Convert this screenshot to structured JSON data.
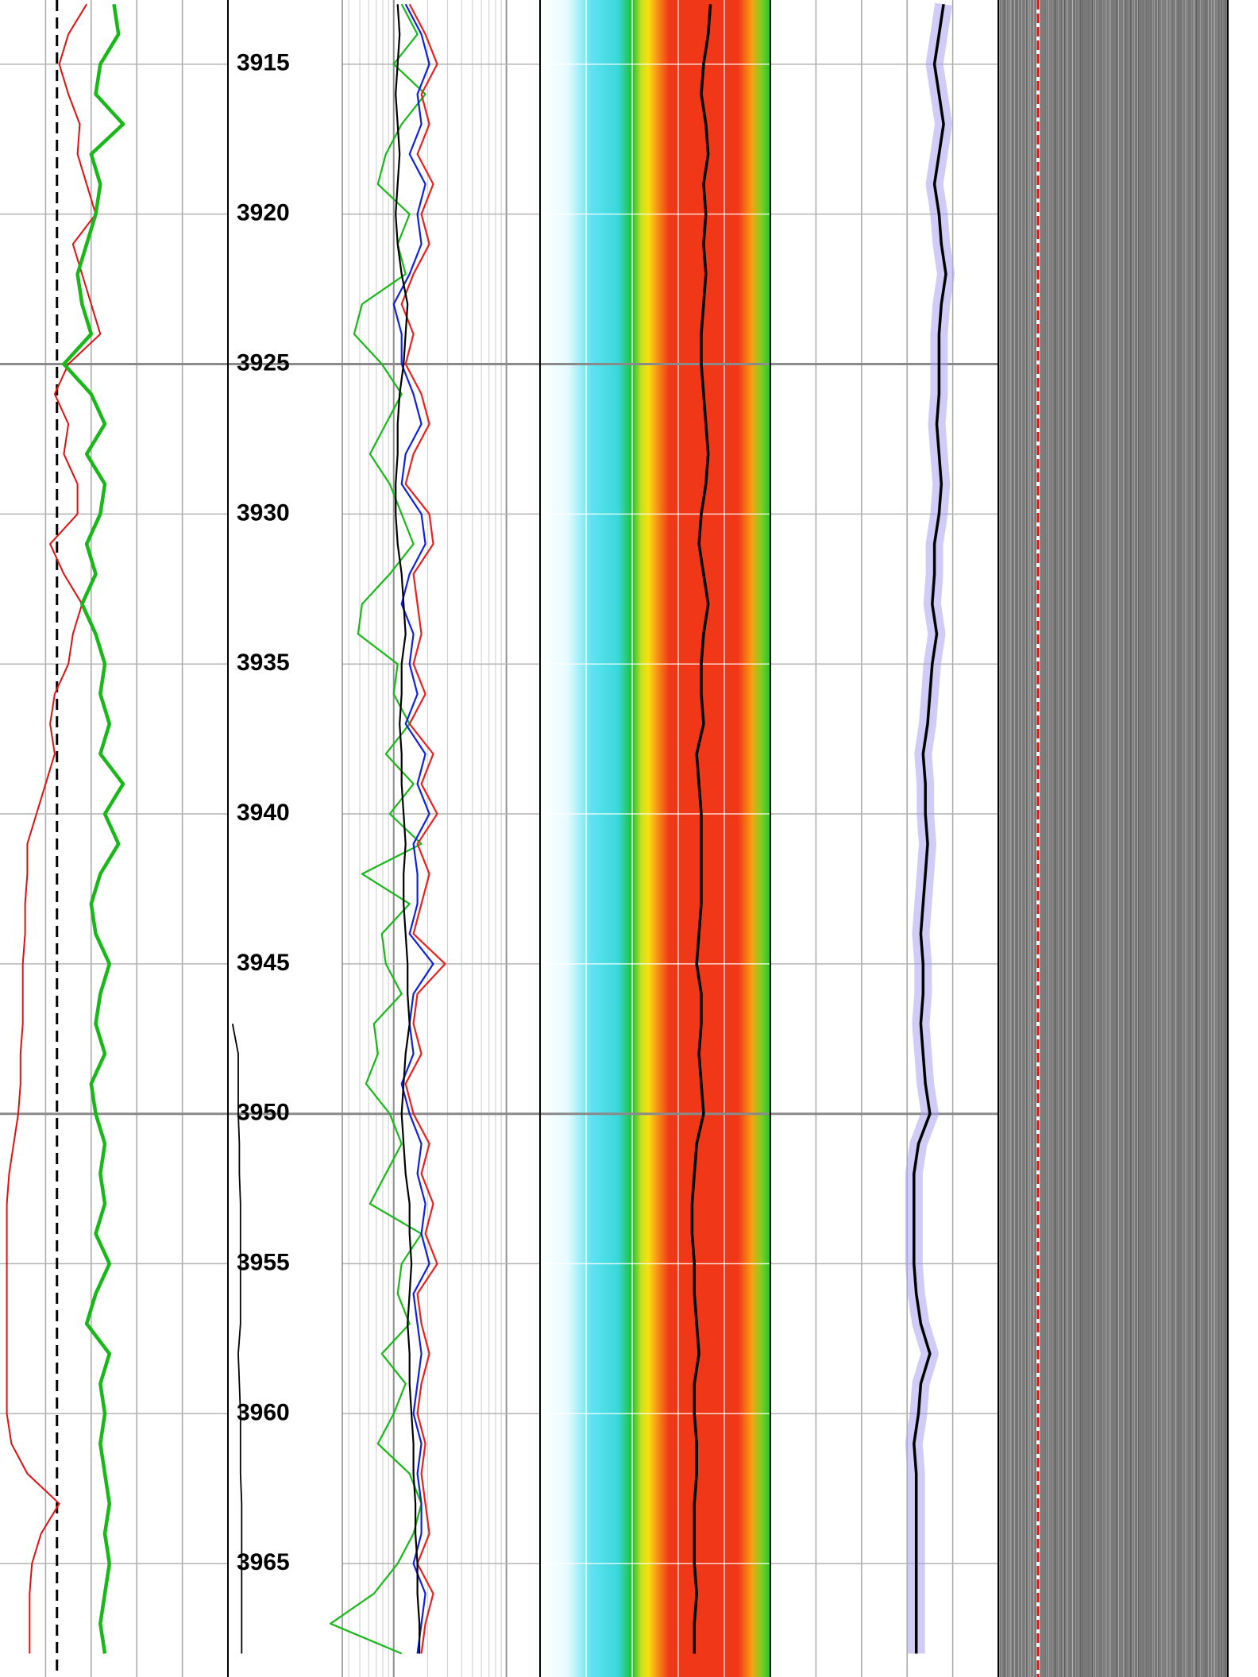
{
  "chart_data": {
    "type": "well-log",
    "ylim": [
      3912.86,
      3968.78
    ],
    "yticks": [
      3915,
      3920,
      3925,
      3930,
      3935,
      3940,
      3945,
      3950,
      3955,
      3960,
      3965
    ],
    "major_lines": [
      3925,
      3950
    ],
    "depth": [
      3913,
      3914,
      3915,
      3916,
      3917,
      3918,
      3919,
      3920,
      3921,
      3922,
      3923,
      3924,
      3925,
      3926,
      3927,
      3928,
      3929,
      3930,
      3931,
      3932,
      3933,
      3934,
      3935,
      3936,
      3937,
      3938,
      3939,
      3940,
      3941,
      3942,
      3943,
      3944,
      3945,
      3946,
      3947,
      3948,
      3949,
      3950,
      3951,
      3952,
      3953,
      3954,
      3955,
      3956,
      3957,
      3958,
      3959,
      3960,
      3961,
      3962,
      3963,
      3964,
      3965,
      3966,
      3967,
      3968
    ],
    "tracks": [
      {
        "xlim": [
          0,
          100
        ],
        "series": [
          {
            "color": "#e01010",
            "values": [
              38,
              30,
              26,
              30,
              35,
              34,
              38,
              42,
              32,
              36,
              40,
              44,
              30,
              24,
              30,
              28,
              34,
              34,
              22,
              28,
              36,
              32,
              30,
              24,
              22,
              24,
              20,
              16,
              12,
              12,
              11,
              11,
              10,
              10,
              10,
              9,
              9,
              8,
              6,
              4,
              3,
              3,
              3,
              3,
              3,
              3,
              3,
              3,
              5,
              12,
              26,
              18,
              14,
              13,
              13,
              13
            ]
          },
          {
            "color": "#18b818",
            "values": [
              50,
              52,
              44,
              42,
              54,
              40,
              44,
              42,
              38,
              34,
              36,
              40,
              28,
              40,
              46,
              38,
              46,
              44,
              38,
              42,
              36,
              42,
              46,
              44,
              48,
              44,
              54,
              46,
              52,
              44,
              40,
              42,
              48,
              44,
              42,
              46,
              40,
              42,
              46,
              44,
              46,
              42,
              48,
              42,
              38,
              48,
              44,
              46,
              44,
              46,
              48,
              46,
              48,
              46,
              44,
              46
            ]
          }
        ]
      },
      {
        "xlim": [
          0,
          100
        ],
        "series": [
          {
            "color": "#000000",
            "values": [
              null,
              null,
              null,
              null,
              null,
              null,
              null,
              null,
              null,
              null,
              null,
              null,
              null,
              null,
              null,
              null,
              null,
              null,
              null,
              null,
              null,
              null,
              null,
              null,
              null,
              null,
              null,
              null,
              null,
              null,
              null,
              null,
              null,
              null,
              4,
              9,
              9,
              9,
              10,
              10,
              11,
              11,
              11,
              11,
              11,
              9,
              10,
              11,
              11,
              11,
              12,
              12,
              12,
              12,
              12,
              12
            ]
          }
        ]
      },
      {
        "xlim": [
          0,
          100
        ],
        "series": [
          {
            "color": "#18b818",
            "values": [
              30,
              38,
              26,
              42,
              30,
              22,
              18,
              34,
              28,
              32,
              10,
              6,
              20,
              30,
              22,
              14,
              24,
              30,
              36,
              24,
              10,
              8,
              28,
              26,
              34,
              22,
              36,
              24,
              40,
              10,
              34,
              20,
              22,
              30,
              16,
              18,
              12,
              24,
              30,
              22,
              14,
              40,
              30,
              28,
              34,
              20,
              32,
              26,
              18,
              34,
              40,
              36,
              28,
              16,
              -6,
              30
            ]
          },
          {
            "color": "#1020e0",
            "values": [
              32,
              40,
              44,
              38,
              40,
              34,
              42,
              38,
              40,
              34,
              26,
              30,
              30,
              36,
              40,
              32,
              30,
              40,
              42,
              34,
              30,
              36,
              34,
              38,
              32,
              42,
              38,
              44,
              36,
              38,
              38,
              34,
              46,
              36,
              34,
              36,
              30,
              34,
              40,
              38,
              42,
              40,
              44,
              36,
              38,
              40,
              38,
              36,
              40,
              38,
              40,
              40,
              36,
              42,
              40,
              38
            ]
          },
          {
            "color": "#e82020",
            "values": [
              34,
              42,
              48,
              40,
              44,
              38,
              46,
              40,
              44,
              36,
              30,
              36,
              32,
              40,
              44,
              36,
              32,
              44,
              46,
              36,
              38,
              40,
              36,
              42,
              34,
              46,
              40,
              48,
              38,
              44,
              40,
              36,
              52,
              38,
              36,
              40,
              32,
              36,
              44,
              40,
              46,
              42,
              48,
              38,
              40,
              44,
              40,
              38,
              42,
              40,
              42,
              44,
              38,
              46,
              42,
              40
            ]
          },
          {
            "color": "#000000",
            "values": [
              28,
              29,
              28,
              27,
              28,
              29,
              28,
              27,
              28,
              30,
              33,
              32,
              31,
              29,
              28,
              28,
              27,
              27,
              28,
              30,
              31,
              32,
              30,
              30,
              29,
              30,
              30,
              31,
              32,
              31,
              31,
              32,
              33,
              33,
              34,
              32,
              31,
              30,
              31,
              32,
              34,
              34,
              35,
              34,
              33,
              34,
              34,
              35,
              36,
              36,
              37,
              37,
              38,
              38,
              39,
              39
            ]
          }
        ]
      },
      {
        "xlim": [
          0,
          100
        ],
        "series": [
          {
            "color": "#000000",
            "values": [
              74,
              73,
              71,
              70,
              72,
              73,
              71,
              72,
              71,
              72,
              71,
              70,
              70,
              71,
              72,
              73,
              72,
              70,
              69,
              71,
              73,
              71,
              70,
              70,
              71,
              68,
              69,
              70,
              70,
              70,
              70,
              69,
              68,
              70,
              70,
              69,
              70,
              71,
              68,
              67,
              66,
              66,
              67,
              67,
              68,
              69,
              67,
              67,
              68,
              68,
              67,
              67,
              67,
              68,
              67,
              67
            ]
          }
        ]
      },
      {
        "xlim": [
          0,
          100
        ],
        "series": [
          {
            "color": "#000000",
            "values": [
              76,
              74,
              72,
              74,
              76,
              74,
              72,
              74,
              75,
              77,
              75,
              74,
              74,
              74,
              73,
              74,
              75,
              74,
              72,
              72,
              71,
              73,
              71,
              70,
              69,
              67,
              68,
              68,
              69,
              68,
              67,
              66,
              67,
              67,
              66,
              67,
              68,
              70,
              65,
              63,
              63,
              63,
              63,
              64,
              66,
              70,
              66,
              65,
              63,
              64,
              64,
              64,
              64,
              64,
              64,
              64
            ]
          }
        ]
      }
    ]
  }
}
